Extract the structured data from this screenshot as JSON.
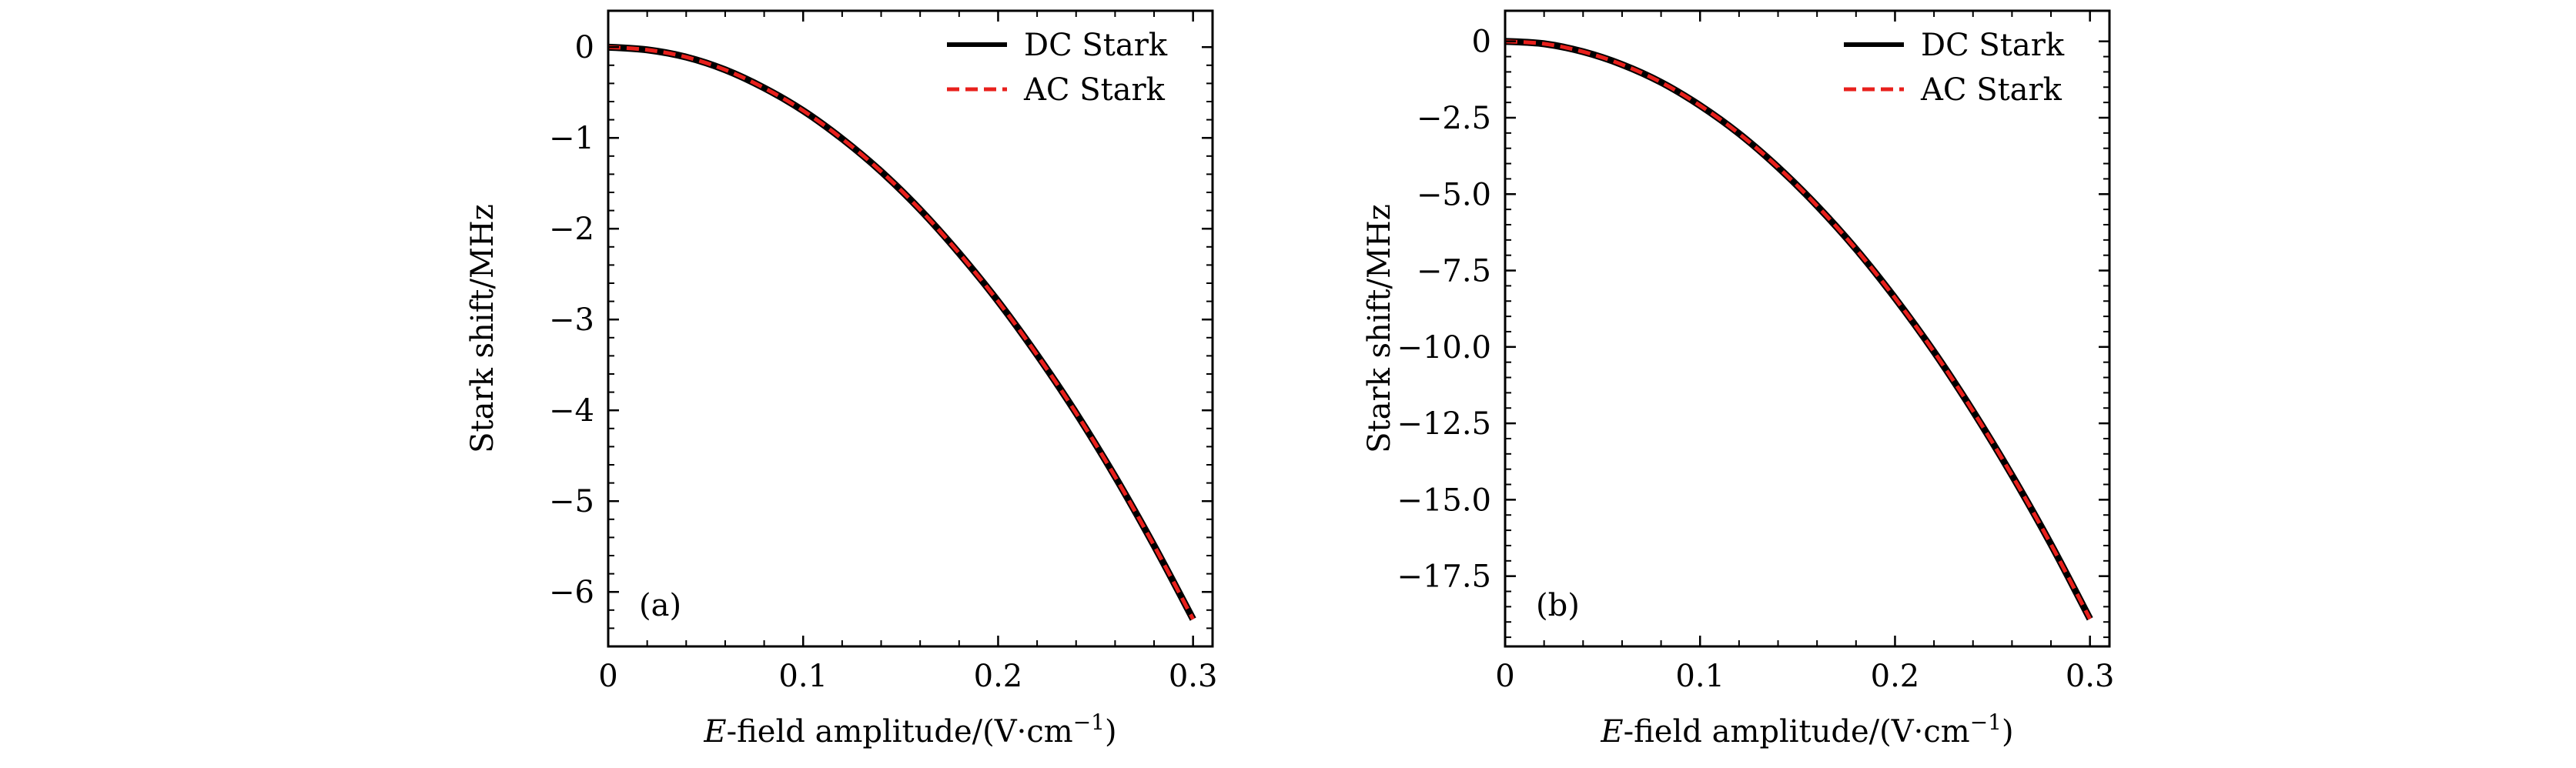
{
  "chart_data": [
    {
      "type": "line",
      "panel_label": "(a)",
      "xlabel_italic": "E",
      "xlabel_rest": "-field amplitude/(V·cm",
      "xlabel_sup": "−1",
      "xlabel_close": ")",
      "ylabel": "Stark shift/MHz",
      "xlim": [
        0,
        0.31
      ],
      "ylim": [
        -6.6,
        0.4
      ],
      "xticks": [
        0,
        0.1,
        0.2,
        0.3
      ],
      "xtick_labels": [
        "0",
        "0.1",
        "0.2",
        "0.3"
      ],
      "yticks": [
        0,
        -1,
        -2,
        -3,
        -4,
        -5,
        -6
      ],
      "ytick_labels": [
        "0",
        "−1",
        "−2",
        "−3",
        "−4",
        "−5",
        "−6"
      ],
      "legend_position": "top-right",
      "grid": false,
      "x": [
        0,
        0.02,
        0.04,
        0.06,
        0.08,
        0.1,
        0.12,
        0.14,
        0.16,
        0.18,
        0.2,
        0.22,
        0.24,
        0.26,
        0.28,
        0.3
      ],
      "series": [
        {
          "name": "DC Stark",
          "color": "#000000",
          "style": "solid",
          "values": [
            0,
            -0.03,
            -0.11,
            -0.25,
            -0.45,
            -0.7,
            -1.01,
            -1.37,
            -1.79,
            -2.27,
            -2.8,
            -3.39,
            -4.03,
            -4.73,
            -5.49,
            -6.3
          ]
        },
        {
          "name": "AC Stark",
          "color": "#e8201c",
          "style": "dashed",
          "values": [
            0,
            -0.03,
            -0.11,
            -0.25,
            -0.45,
            -0.7,
            -1.01,
            -1.37,
            -1.79,
            -2.27,
            -2.8,
            -3.39,
            -4.03,
            -4.73,
            -5.49,
            -6.3
          ]
        }
      ]
    },
    {
      "type": "line",
      "panel_label": "(b)",
      "xlabel_italic": "E",
      "xlabel_rest": "-field amplitude/(V·cm",
      "xlabel_sup": "−1",
      "xlabel_close": ")",
      "ylabel": "Stark shift/MHz",
      "xlim": [
        0,
        0.31
      ],
      "ylim": [
        -19.8,
        1.0
      ],
      "xticks": [
        0,
        0.1,
        0.2,
        0.3
      ],
      "xtick_labels": [
        "0",
        "0.1",
        "0.2",
        "0.3"
      ],
      "yticks": [
        0,
        -2.5,
        -5.0,
        -7.5,
        -10.0,
        -12.5,
        -15.0,
        -17.5
      ],
      "ytick_labels": [
        "0",
        "−2.5",
        "−5.0",
        "−7.5",
        "−10.0",
        "−12.5",
        "−15.0",
        "−17.5"
      ],
      "legend_position": "top-right",
      "grid": false,
      "x": [
        0,
        0.02,
        0.04,
        0.06,
        0.08,
        0.1,
        0.12,
        0.14,
        0.16,
        0.18,
        0.2,
        0.22,
        0.24,
        0.26,
        0.28,
        0.3
      ],
      "series": [
        {
          "name": "DC Stark",
          "color": "#000000",
          "style": "solid",
          "values": [
            0,
            -0.08,
            -0.34,
            -0.76,
            -1.34,
            -2.1,
            -3.02,
            -4.12,
            -5.38,
            -6.8,
            -8.4,
            -10.16,
            -12.1,
            -14.2,
            -16.46,
            -18.9
          ]
        },
        {
          "name": "AC Stark",
          "color": "#e8201c",
          "style": "dashed",
          "values": [
            0,
            -0.08,
            -0.34,
            -0.76,
            -1.34,
            -2.1,
            -3.02,
            -4.12,
            -5.38,
            -6.8,
            -8.4,
            -10.16,
            -12.1,
            -14.2,
            -16.46,
            -18.9
          ]
        }
      ]
    }
  ]
}
